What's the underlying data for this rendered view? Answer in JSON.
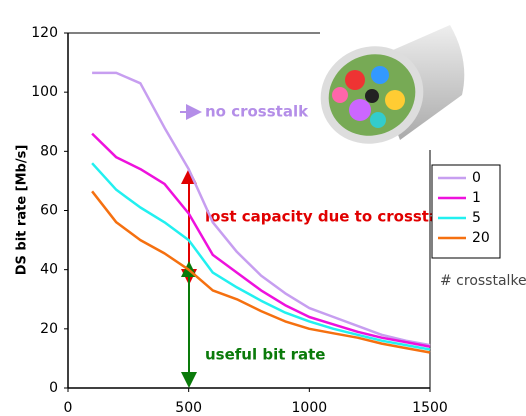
{
  "chart_data": {
    "type": "line",
    "y_label": "DS bit rate [Mb/s]",
    "legend_title": "# crosstalker",
    "annotations": {
      "no_crosstalk": "no crosstalk",
      "lost": "lost capacity due to crosstalk",
      "useful": "useful bit rate"
    },
    "x": [
      100,
      200,
      300,
      400,
      500,
      600,
      700,
      800,
      900,
      1000,
      1100,
      1200,
      1300,
      1400,
      1500
    ],
    "series": [
      {
        "name": "0",
        "color": "#c79ef0",
        "values": [
          106.5,
          106.5,
          103,
          88,
          74,
          56,
          46,
          38,
          32,
          27,
          24,
          21,
          18,
          16,
          14.5
        ]
      },
      {
        "name": "1",
        "color": "#ee11dd",
        "values": [
          86,
          78,
          74,
          69,
          59,
          45,
          39,
          33,
          28,
          24,
          21.5,
          19,
          17,
          15.5,
          14
        ]
      },
      {
        "name": "5",
        "color": "#22f0f0",
        "values": [
          76,
          67,
          61,
          56,
          50,
          39,
          34,
          29.5,
          25.5,
          22.5,
          20,
          18,
          16,
          14.5,
          13
        ]
      },
      {
        "name": "20",
        "color": "#f57010",
        "values": [
          66.5,
          56,
          50,
          45.5,
          40,
          33,
          30,
          26,
          22.5,
          20,
          18.5,
          17,
          15,
          13.5,
          12
        ]
      }
    ],
    "xlim": [
      0,
      1500
    ],
    "xticks": [
      0,
      500,
      1000,
      1500
    ],
    "ylim": [
      0,
      120
    ],
    "yticks": [
      0,
      20,
      40,
      60,
      80,
      100,
      120
    ],
    "legend": "right",
    "grid": false
  }
}
